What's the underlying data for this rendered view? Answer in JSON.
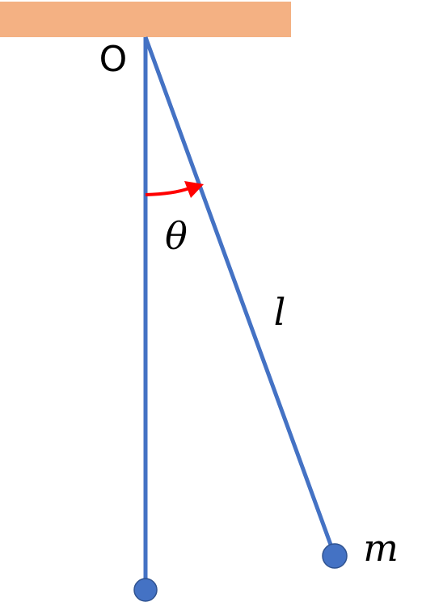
{
  "labels": {
    "pivot": "O",
    "angle": "θ",
    "length": "l",
    "mass": "m"
  }
}
